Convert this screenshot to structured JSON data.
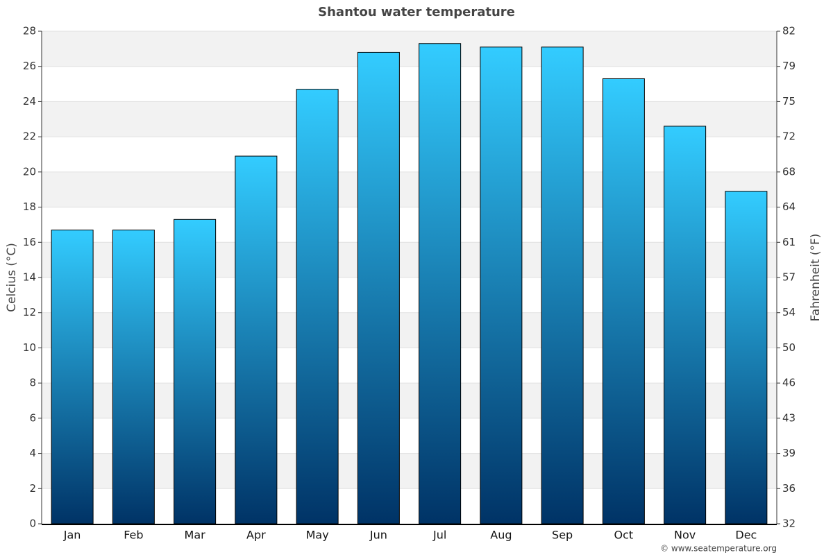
{
  "chart_data": {
    "type": "bar",
    "title": "Shantou water temperature",
    "y_label": "Celcius (°C)",
    "y2_label": "Fahrenheit (°F)",
    "credit": "© www.seatemperature.org",
    "categories": [
      "Jan",
      "Feb",
      "Mar",
      "Apr",
      "May",
      "Jun",
      "Jul",
      "Aug",
      "Sep",
      "Oct",
      "Nov",
      "Dec"
    ],
    "values": [
      16.7,
      16.7,
      17.3,
      20.9,
      24.7,
      26.8,
      27.3,
      27.1,
      27.1,
      25.3,
      22.6,
      18.9
    ],
    "gradient": [
      "#33ccff",
      "#003366"
    ],
    "ylim": [
      0,
      28
    ],
    "yticks": [
      0,
      2,
      4,
      6,
      8,
      10,
      12,
      14,
      16,
      18,
      20,
      22,
      24,
      26,
      28
    ],
    "y2lim": [
      32,
      82.4
    ],
    "y2ticks": [
      32,
      {
        "value": 35.6,
        "label": "36"
      },
      {
        "value": 39.2,
        "label": "39"
      },
      {
        "value": 42.8,
        "label": "43"
      },
      {
        "value": 46.4,
        "label": "46"
      },
      50,
      {
        "value": 53.6,
        "label": "54"
      },
      {
        "value": 57.2,
        "label": "57"
      },
      {
        "value": 60.8,
        "label": "61"
      },
      {
        "value": 64.4,
        "label": "64"
      },
      68,
      {
        "value": 71.6,
        "label": "72"
      },
      {
        "value": 75.2,
        "label": "75"
      },
      {
        "value": 78.8,
        "label": "79"
      },
      {
        "value": 82.4,
        "label": "82"
      }
    ],
    "grid": true
  }
}
